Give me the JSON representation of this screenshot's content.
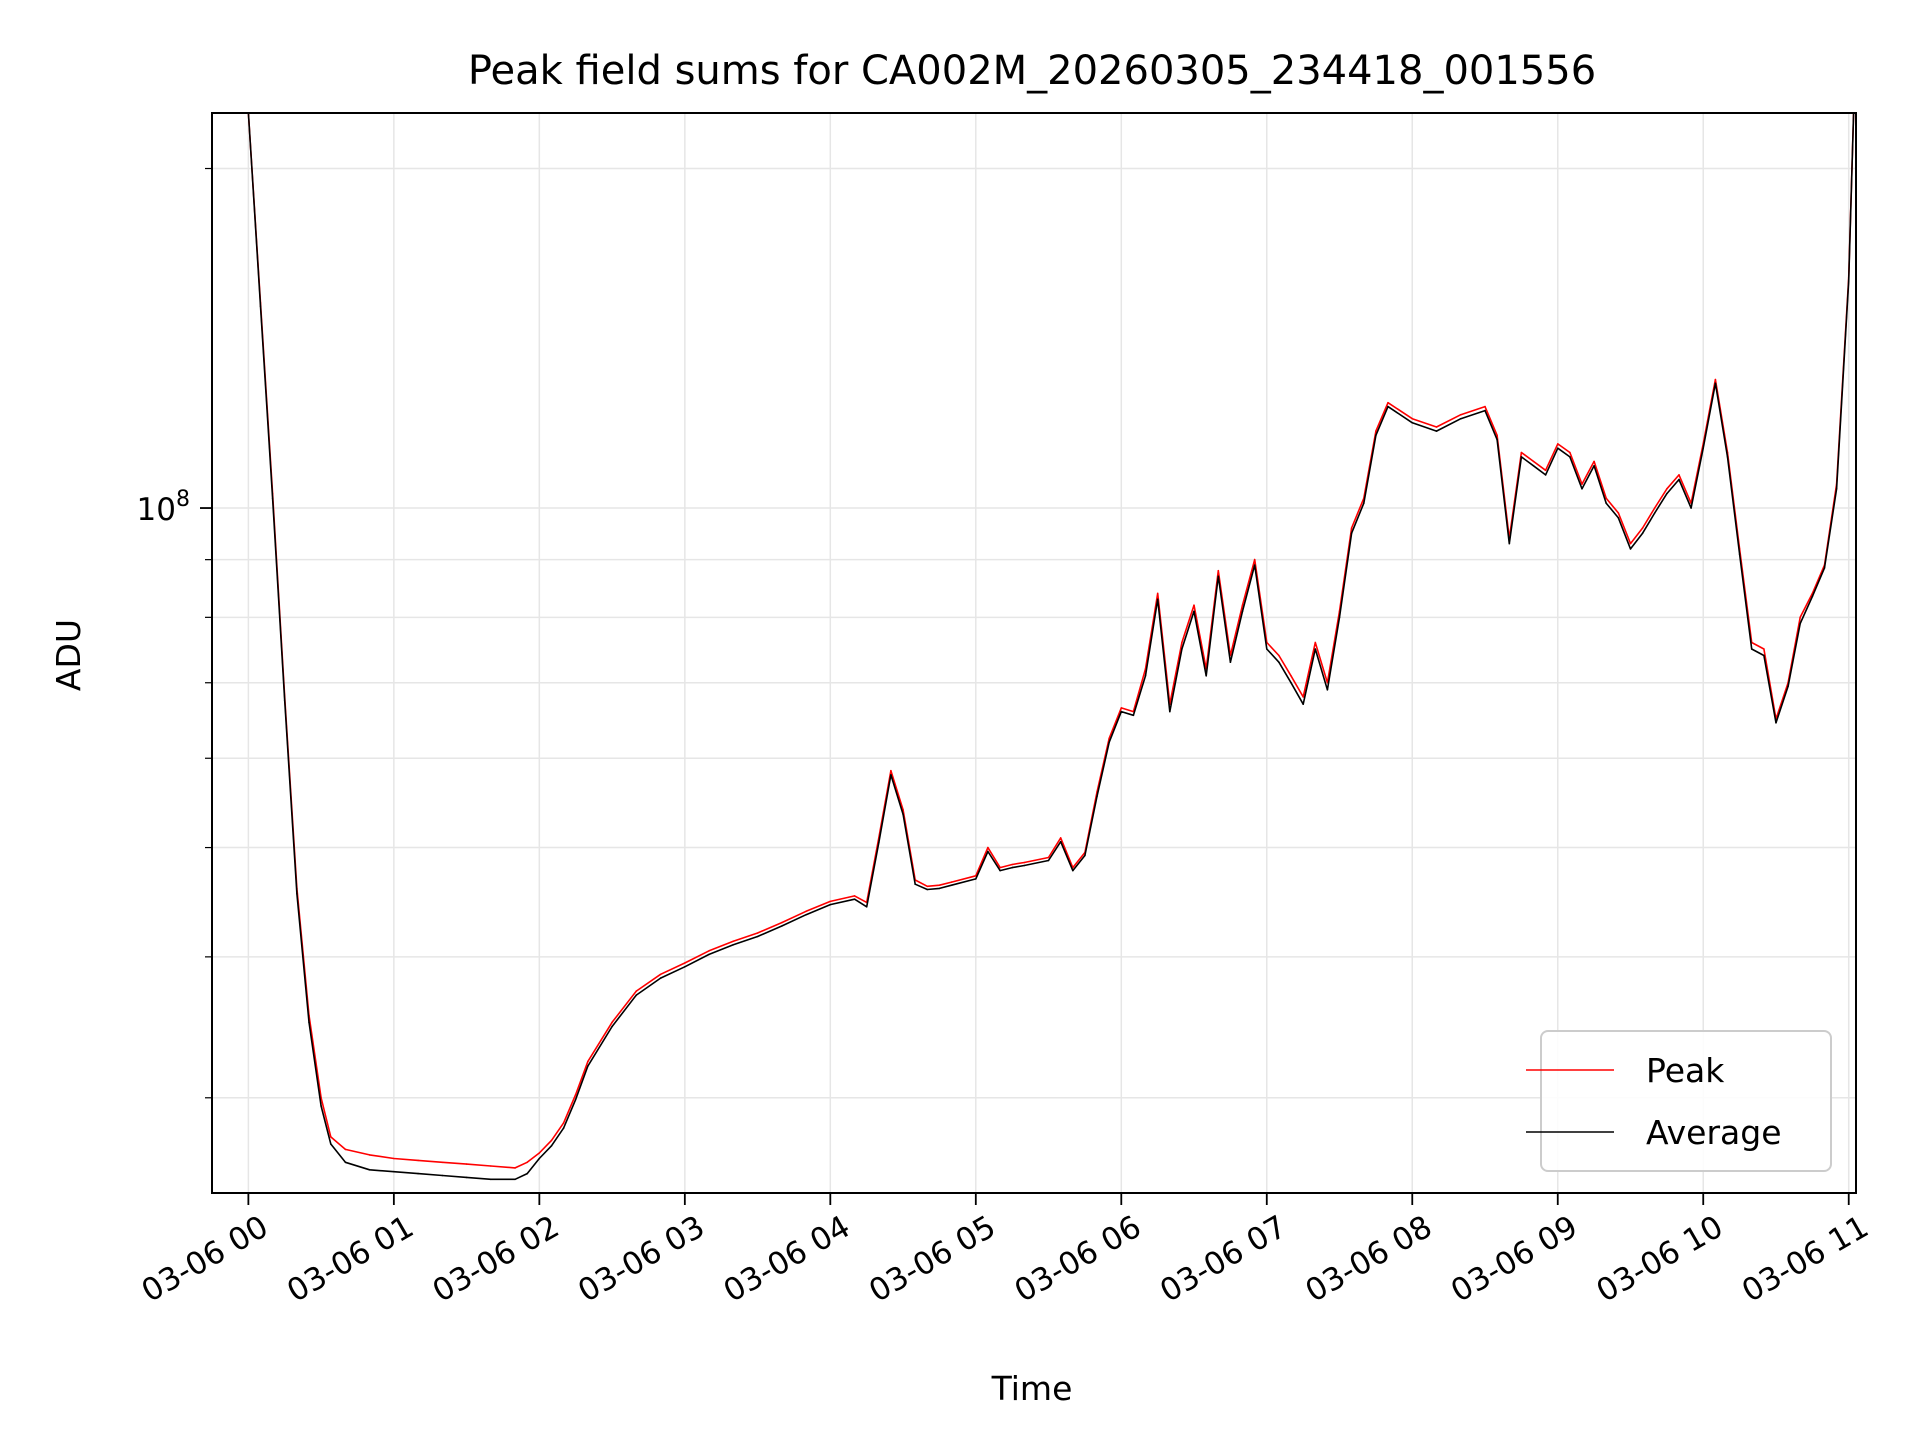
{
  "chart_data": {
    "type": "line",
    "title": "Peak field sums for CA002M_20260305_234418_001556",
    "xlabel": "Time",
    "ylabel": "ADU",
    "y_scale": "log",
    "ylim": [
      24700000,
      224000000
    ],
    "xlim": [
      "03-05 23:45",
      "03-06 11:03"
    ],
    "x_ticks": [
      "03-06 00",
      "03-06 01",
      "03-06 02",
      "03-06 03",
      "03-06 04",
      "03-06 05",
      "03-06 06",
      "03-06 07",
      "03-06 08",
      "03-06 09",
      "03-06 10",
      "03-06 11"
    ],
    "y_major_tick": {
      "value": 100000000,
      "label_base": "10",
      "label_exp": "8"
    },
    "grid": true,
    "legend": {
      "position": "lower-right"
    },
    "series": [
      {
        "name": "Peak",
        "color": "#ff0000",
        "x": [
          "00:00",
          "00:05",
          "00:10",
          "00:15",
          "00:20",
          "00:25",
          "00:30",
          "00:34",
          "00:40",
          "00:50",
          "01:00",
          "01:10",
          "01:20",
          "01:30",
          "01:40",
          "01:50",
          "01:55",
          "02:00",
          "02:05",
          "02:10",
          "02:15",
          "02:20",
          "02:30",
          "02:40",
          "02:50",
          "03:00",
          "03:10",
          "03:20",
          "03:30",
          "03:40",
          "03:50",
          "04:00",
          "04:10",
          "04:15",
          "04:20",
          "04:25",
          "04:30",
          "04:35",
          "04:40",
          "04:45",
          "04:50",
          "05:00",
          "05:05",
          "05:10",
          "05:15",
          "05:20",
          "05:30",
          "05:35",
          "05:40",
          "05:45",
          "05:50",
          "05:55",
          "06:00",
          "06:05",
          "06:10",
          "06:15",
          "06:20",
          "06:25",
          "06:30",
          "06:35",
          "06:40",
          "06:45",
          "06:50",
          "06:55",
          "07:00",
          "07:05",
          "07:10",
          "07:15",
          "07:20",
          "07:25",
          "07:30",
          "07:35",
          "07:40",
          "07:45",
          "07:50",
          "08:00",
          "08:10",
          "08:20",
          "08:30",
          "08:35",
          "08:40",
          "08:45",
          "08:50",
          "08:55",
          "09:00",
          "09:05",
          "09:10",
          "09:15",
          "09:20",
          "09:25",
          "09:30",
          "09:35",
          "09:40",
          "09:45",
          "09:50",
          "09:55",
          "10:00",
          "10:05",
          "10:10",
          "10:15",
          "10:20",
          "10:25",
          "10:30",
          "10:35",
          "10:40",
          "10:45",
          "10:50",
          "10:55",
          "11:00",
          "11:02"
        ],
        "y": [
          224000000,
          152000000,
          103000000,
          68000000,
          46000000,
          35500000,
          30000000,
          27700000,
          27000000,
          26700000,
          26500000,
          26400000,
          26300000,
          26200000,
          26100000,
          26000000,
          26300000,
          26800000,
          27500000,
          28500000,
          30200000,
          32300000,
          35000000,
          37300000,
          38600000,
          39500000,
          40500000,
          41300000,
          42000000,
          42900000,
          43900000,
          44800000,
          45300000,
          44700000,
          51000000,
          58500000,
          54000000,
          46800000,
          46200000,
          46300000,
          46600000,
          47200000,
          50000000,
          48000000,
          48300000,
          48500000,
          49000000,
          51000000,
          48000000,
          49500000,
          56000000,
          62500000,
          66500000,
          66000000,
          72000000,
          84000000,
          67000000,
          76000000,
          82000000,
          72000000,
          88000000,
          74000000,
          82000000,
          90000000,
          76000000,
          74000000,
          71000000,
          68000000,
          76000000,
          70000000,
          81000000,
          96000000,
          102000000,
          117000000,
          124000000,
          120000000,
          118000000,
          121000000,
          123000000,
          116000000,
          94000000,
          112000000,
          110000000,
          108000000,
          114000000,
          112000000,
          105000000,
          110000000,
          102000000,
          99000000,
          93000000,
          96000000,
          100000000,
          104000000,
          107000000,
          101000000,
          114000000,
          130000000,
          112000000,
          92000000,
          76000000,
          75000000,
          65000000,
          70000000,
          80000000,
          84000000,
          89000000,
          105000000,
          160000000,
          224000000
        ]
      },
      {
        "name": "Average",
        "color": "#000000",
        "x": [
          "00:00",
          "00:05",
          "00:10",
          "00:15",
          "00:20",
          "00:25",
          "00:30",
          "00:34",
          "00:40",
          "00:50",
          "01:00",
          "01:10",
          "01:20",
          "01:30",
          "01:40",
          "01:50",
          "01:55",
          "02:00",
          "02:05",
          "02:10",
          "02:15",
          "02:20",
          "02:30",
          "02:40",
          "02:50",
          "03:00",
          "03:10",
          "03:20",
          "03:30",
          "03:40",
          "03:50",
          "04:00",
          "04:10",
          "04:15",
          "04:20",
          "04:25",
          "04:30",
          "04:35",
          "04:40",
          "04:45",
          "04:50",
          "05:00",
          "05:05",
          "05:10",
          "05:15",
          "05:20",
          "05:30",
          "05:35",
          "05:40",
          "05:45",
          "05:50",
          "05:55",
          "06:00",
          "06:05",
          "06:10",
          "06:15",
          "06:20",
          "06:25",
          "06:30",
          "06:35",
          "06:40",
          "06:45",
          "06:50",
          "06:55",
          "07:00",
          "07:05",
          "07:10",
          "07:15",
          "07:20",
          "07:25",
          "07:30",
          "07:35",
          "07:40",
          "07:45",
          "07:50",
          "08:00",
          "08:10",
          "08:20",
          "08:30",
          "08:35",
          "08:40",
          "08:45",
          "08:50",
          "08:55",
          "09:00",
          "09:05",
          "09:10",
          "09:15",
          "09:20",
          "09:25",
          "09:30",
          "09:35",
          "09:40",
          "09:45",
          "09:50",
          "09:55",
          "10:00",
          "10:05",
          "10:10",
          "10:15",
          "10:20",
          "10:25",
          "10:30",
          "10:35",
          "10:40",
          "10:45",
          "10:50",
          "10:55",
          "11:00",
          "11:02"
        ],
        "y": [
          224000000,
          151000000,
          102000000,
          67500000,
          45500000,
          35000000,
          29500000,
          27300000,
          26300000,
          25900000,
          25800000,
          25700000,
          25600000,
          25500000,
          25400000,
          25400000,
          25700000,
          26500000,
          27200000,
          28200000,
          29900000,
          32000000,
          34700000,
          37000000,
          38300000,
          39200000,
          40200000,
          41000000,
          41700000,
          42600000,
          43600000,
          44500000,
          45000000,
          44300000,
          50500000,
          58000000,
          53500000,
          46400000,
          45900000,
          46000000,
          46300000,
          46900000,
          49600000,
          47700000,
          48000000,
          48200000,
          48700000,
          50600000,
          47700000,
          49200000,
          55500000,
          62000000,
          66000000,
          65500000,
          71000000,
          83000000,
          66000000,
          75000000,
          81000000,
          71000000,
          87000000,
          73000000,
          81000000,
          89000000,
          75000000,
          73000000,
          70000000,
          67000000,
          75000000,
          69000000,
          80000000,
          95000000,
          101000000,
          116000000,
          123000000,
          119000000,
          117000000,
          120000000,
          122000000,
          115000000,
          93000000,
          111000000,
          109000000,
          107000000,
          113000000,
          111000000,
          104000000,
          109000000,
          101000000,
          98000000,
          92000000,
          95000000,
          99000000,
          103000000,
          106000000,
          100000000,
          113000000,
          129000000,
          111000000,
          91000000,
          75000000,
          74000000,
          64500000,
          69500000,
          79000000,
          83500000,
          88500000,
          104000000,
          159000000,
          224000000
        ]
      }
    ]
  }
}
